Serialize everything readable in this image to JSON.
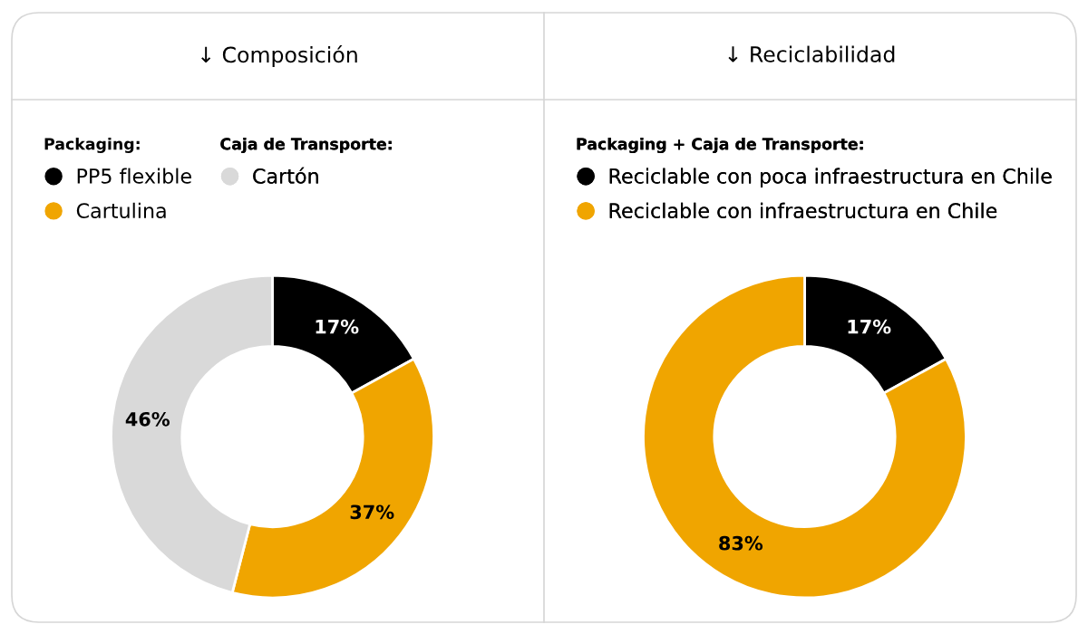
{
  "chart_data": [
    {
      "type": "donut",
      "title": "↓ Composición",
      "legend_title": "Packaging:",
      "annotations": [
        "Caja de Transporte:"
      ],
      "legend": "top left",
      "categories": [
        "PP5 flexible",
        "Cartulina",
        "Cartón"
      ],
      "values": [
        17,
        37,
        46
      ],
      "colors": [
        "#000000",
        "#f0a500",
        "#d9d9d9"
      ],
      "value_labels": [
        "17%",
        "37%",
        "46%"
      ]
    },
    {
      "type": "donut",
      "title": "↓ Reciclabilidad",
      "legend_title": "Packaging + Caja de Transporte:",
      "legend": "top left",
      "categories": [
        "Reciclable con poca infraestructura en Chile",
        "Reciclable con infraestructura en Chile"
      ],
      "values": [
        17,
        83
      ],
      "colors": [
        "#000000",
        "#f0a500"
      ],
      "value_labels": [
        "17%",
        "83%"
      ]
    }
  ]
}
